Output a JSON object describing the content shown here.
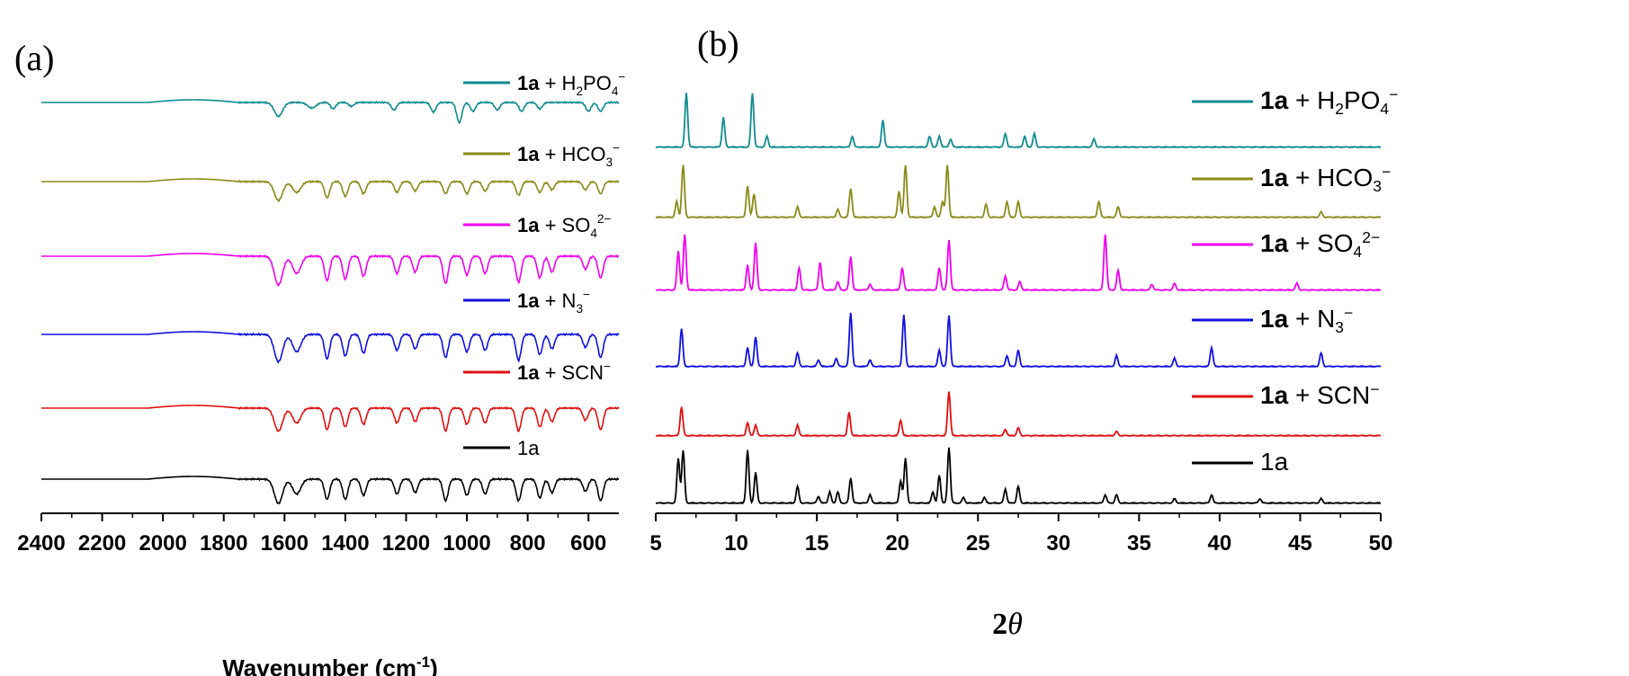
{
  "chart_data": [
    {
      "panel_label": "(a)",
      "type": "line",
      "xlabel": "Wavenumber (cm",
      "xlabel_sup": "-1",
      "xlabel_tail": ")",
      "xlim": [
        2400,
        500
      ],
      "xticks": [
        "2400",
        "2200",
        "2000",
        "1800",
        "1600",
        "1400",
        "1200",
        "1000",
        "800",
        "600"
      ],
      "xtick_values": [
        2400,
        2200,
        2000,
        1800,
        1600,
        1400,
        1200,
        1000,
        800,
        600
      ],
      "ylabel": "",
      "legend_placement": "right, one entry above each trace",
      "series": [
        {
          "name_bold": "1a",
          "name_parts": [
            [
              "+ H",
              ""
            ],
            [
              "2",
              "sub"
            ],
            [
              "PO",
              ""
            ],
            [
              "4",
              "sub"
            ],
            [
              "−",
              "sup"
            ]
          ],
          "color": "#0f8b8d",
          "peaks": [
            [
              1620,
              0.55
            ],
            [
              1510,
              0.22
            ],
            [
              1440,
              0.25
            ],
            [
              1380,
              0.15
            ],
            [
              1240,
              0.3
            ],
            [
              1110,
              0.38
            ],
            [
              1025,
              0.8
            ],
            [
              980,
              0.35
            ],
            [
              900,
              0.3
            ],
            [
              820,
              0.35
            ],
            [
              760,
              0.25
            ],
            [
              600,
              0.35
            ],
            [
              560,
              0.35
            ]
          ]
        },
        {
          "name_bold": "1a",
          "name_parts": [
            [
              "+ HCO",
              ""
            ],
            [
              "3",
              "sub"
            ],
            [
              "−",
              "sup"
            ]
          ],
          "color": "#8a8a1a",
          "peaks": [
            [
              1620,
              0.7
            ],
            [
              1560,
              0.4
            ],
            [
              1460,
              0.6
            ],
            [
              1400,
              0.55
            ],
            [
              1340,
              0.45
            ],
            [
              1230,
              0.4
            ],
            [
              1170,
              0.35
            ],
            [
              1070,
              0.45
            ],
            [
              1000,
              0.45
            ],
            [
              940,
              0.35
            ],
            [
              830,
              0.5
            ],
            [
              760,
              0.4
            ],
            [
              720,
              0.3
            ],
            [
              610,
              0.3
            ],
            [
              560,
              0.45
            ]
          ]
        },
        {
          "name_bold": "1a",
          "name_parts": [
            [
              "+ SO",
              ""
            ],
            [
              "4",
              "sub"
            ],
            [
              "2−",
              "sup"
            ]
          ],
          "color": "#f000f0",
          "peaks": [
            [
              1620,
              1.0
            ],
            [
              1560,
              0.6
            ],
            [
              1460,
              0.85
            ],
            [
              1400,
              0.8
            ],
            [
              1340,
              0.7
            ],
            [
              1230,
              0.6
            ],
            [
              1170,
              0.55
            ],
            [
              1070,
              0.95
            ],
            [
              1000,
              0.65
            ],
            [
              940,
              0.6
            ],
            [
              830,
              0.9
            ],
            [
              760,
              0.75
            ],
            [
              720,
              0.55
            ],
            [
              610,
              0.45
            ],
            [
              560,
              0.75
            ]
          ]
        },
        {
          "name_bold": "1a",
          "name_parts": [
            [
              "+ N",
              ""
            ],
            [
              "3",
              "sub"
            ],
            [
              "−",
              "sup"
            ]
          ],
          "color": "#1010e0",
          "peaks": [
            [
              2050,
              0.25
            ],
            [
              1620,
              0.95
            ],
            [
              1560,
              0.6
            ],
            [
              1460,
              0.85
            ],
            [
              1400,
              0.75
            ],
            [
              1340,
              0.65
            ],
            [
              1230,
              0.55
            ],
            [
              1170,
              0.5
            ],
            [
              1070,
              0.8
            ],
            [
              1000,
              0.6
            ],
            [
              940,
              0.55
            ],
            [
              830,
              0.9
            ],
            [
              760,
              0.7
            ],
            [
              720,
              0.5
            ],
            [
              610,
              0.45
            ],
            [
              560,
              0.8
            ]
          ]
        },
        {
          "name_bold": "1a",
          "name_parts": [
            [
              "+ SCN",
              ""
            ],
            [
              "−",
              "sup"
            ]
          ],
          "color": "#e01010",
          "peaks": [
            [
              2100,
              0.25
            ],
            [
              1620,
              0.85
            ],
            [
              1560,
              0.55
            ],
            [
              1460,
              0.8
            ],
            [
              1400,
              0.7
            ],
            [
              1340,
              0.6
            ],
            [
              1230,
              0.55
            ],
            [
              1170,
              0.5
            ],
            [
              1070,
              0.85
            ],
            [
              1000,
              0.6
            ],
            [
              940,
              0.55
            ],
            [
              830,
              0.85
            ],
            [
              760,
              0.7
            ],
            [
              720,
              0.5
            ],
            [
              610,
              0.45
            ],
            [
              560,
              0.8
            ]
          ]
        },
        {
          "name_bold": "",
          "name_parts": [
            [
              "1a",
              ""
            ]
          ],
          "color": "#000000",
          "peaks": [
            [
              1620,
              0.9
            ],
            [
              1560,
              0.55
            ],
            [
              1460,
              0.75
            ],
            [
              1400,
              0.75
            ],
            [
              1340,
              0.6
            ],
            [
              1230,
              0.55
            ],
            [
              1170,
              0.5
            ],
            [
              1070,
              0.8
            ],
            [
              1000,
              0.6
            ],
            [
              940,
              0.55
            ],
            [
              830,
              0.8
            ],
            [
              760,
              0.7
            ],
            [
              720,
              0.5
            ],
            [
              610,
              0.45
            ],
            [
              560,
              0.8
            ]
          ]
        }
      ]
    },
    {
      "panel_label": "(b)",
      "type": "line",
      "xlabel": "2",
      "xlabel_greek": "θ",
      "xlim": [
        5,
        50
      ],
      "xticks": [
        "5",
        "10",
        "15",
        "20",
        "25",
        "30",
        "35",
        "40",
        "45",
        "50"
      ],
      "xtick_values": [
        5,
        10,
        15,
        20,
        25,
        30,
        35,
        40,
        45,
        50
      ],
      "ylabel": "",
      "legend_placement": "right, one entry beside each trace",
      "series": [
        {
          "name_bold": "1a",
          "name_parts": [
            [
              "+ H",
              ""
            ],
            [
              "2",
              "sub"
            ],
            [
              "PO",
              ""
            ],
            [
              "4",
              "sub"
            ],
            [
              "−",
              "sup"
            ]
          ],
          "color": "#0f8b8d",
          "peaks": [
            [
              6.9,
              1.0
            ],
            [
              9.2,
              0.55
            ],
            [
              11.0,
              1.0
            ],
            [
              11.9,
              0.2
            ],
            [
              17.2,
              0.2
            ],
            [
              19.1,
              0.5
            ],
            [
              22.0,
              0.2
            ],
            [
              22.6,
              0.2
            ],
            [
              23.3,
              0.15
            ],
            [
              26.7,
              0.25
            ],
            [
              27.9,
              0.2
            ],
            [
              28.5,
              0.25
            ],
            [
              32.2,
              0.15
            ]
          ]
        },
        {
          "name_bold": "1a",
          "name_parts": [
            [
              "+ HCO",
              ""
            ],
            [
              "3",
              "sub"
            ],
            [
              "−",
              "sup"
            ]
          ],
          "color": "#8a8a1a",
          "peaks": [
            [
              6.3,
              0.3
            ],
            [
              6.7,
              1.0
            ],
            [
              10.7,
              0.6
            ],
            [
              11.1,
              0.45
            ],
            [
              13.8,
              0.2
            ],
            [
              16.3,
              0.15
            ],
            [
              17.1,
              0.55
            ],
            [
              20.1,
              0.5
            ],
            [
              20.5,
              1.0
            ],
            [
              22.3,
              0.2
            ],
            [
              22.8,
              0.3
            ],
            [
              23.1,
              1.0
            ],
            [
              25.5,
              0.25
            ],
            [
              26.8,
              0.3
            ],
            [
              27.5,
              0.3
            ],
            [
              32.5,
              0.3
            ],
            [
              33.7,
              0.2
            ],
            [
              46.3,
              0.1
            ]
          ]
        },
        {
          "name_bold": "1a",
          "name_parts": [
            [
              "+ SO",
              ""
            ],
            [
              "4",
              "sub"
            ],
            [
              "2−",
              "sup"
            ]
          ],
          "color": "#f000f0",
          "peaks": [
            [
              6.4,
              0.7
            ],
            [
              6.8,
              1.0
            ],
            [
              10.7,
              0.45
            ],
            [
              11.2,
              0.85
            ],
            [
              13.9,
              0.4
            ],
            [
              15.2,
              0.5
            ],
            [
              16.3,
              0.15
            ],
            [
              17.1,
              0.6
            ],
            [
              18.3,
              0.1
            ],
            [
              20.3,
              0.4
            ],
            [
              22.6,
              0.4
            ],
            [
              23.2,
              0.9
            ],
            [
              26.7,
              0.25
            ],
            [
              27.6,
              0.15
            ],
            [
              32.9,
              1.0
            ],
            [
              33.7,
              0.35
            ],
            [
              35.8,
              0.1
            ],
            [
              37.2,
              0.12
            ],
            [
              44.8,
              0.12
            ]
          ]
        },
        {
          "name_bold": "1a",
          "name_parts": [
            [
              "+ N",
              ""
            ],
            [
              "3",
              "sub"
            ],
            [
              "−",
              "sup"
            ]
          ],
          "color": "#1010e0",
          "peaks": [
            [
              6.6,
              0.7
            ],
            [
              10.7,
              0.35
            ],
            [
              11.2,
              0.55
            ],
            [
              13.8,
              0.25
            ],
            [
              15.1,
              0.12
            ],
            [
              16.2,
              0.15
            ],
            [
              17.1,
              1.0
            ],
            [
              18.3,
              0.12
            ],
            [
              20.4,
              0.95
            ],
            [
              22.6,
              0.3
            ],
            [
              23.2,
              0.95
            ],
            [
              26.8,
              0.2
            ],
            [
              27.5,
              0.3
            ],
            [
              33.6,
              0.2
            ],
            [
              37.2,
              0.15
            ],
            [
              39.5,
              0.35
            ],
            [
              46.3,
              0.25
            ]
          ]
        },
        {
          "name_bold": "1a",
          "name_parts": [
            [
              "+ SCN",
              ""
            ],
            [
              "−",
              "sup"
            ]
          ],
          "color": "#e01010",
          "peaks": [
            [
              6.6,
              0.55
            ],
            [
              10.7,
              0.25
            ],
            [
              11.2,
              0.2
            ],
            [
              13.8,
              0.2
            ],
            [
              17.0,
              0.45
            ],
            [
              20.2,
              0.3
            ],
            [
              23.2,
              0.85
            ],
            [
              26.7,
              0.12
            ],
            [
              27.5,
              0.15
            ],
            [
              33.6,
              0.08
            ]
          ]
        },
        {
          "name_bold": "",
          "name_parts": [
            [
              "1a",
              ""
            ]
          ],
          "color": "#000000",
          "peaks": [
            [
              6.4,
              0.8
            ],
            [
              6.7,
              0.95
            ],
            [
              10.7,
              0.95
            ],
            [
              11.2,
              0.55
            ],
            [
              13.8,
              0.3
            ],
            [
              15.1,
              0.12
            ],
            [
              15.8,
              0.2
            ],
            [
              16.3,
              0.2
            ],
            [
              17.1,
              0.45
            ],
            [
              18.3,
              0.15
            ],
            [
              20.2,
              0.4
            ],
            [
              20.5,
              0.8
            ],
            [
              22.2,
              0.2
            ],
            [
              22.6,
              0.5
            ],
            [
              23.2,
              1.0
            ],
            [
              24.1,
              0.1
            ],
            [
              25.4,
              0.1
            ],
            [
              26.7,
              0.25
            ],
            [
              27.5,
              0.3
            ],
            [
              32.9,
              0.15
            ],
            [
              33.6,
              0.15
            ],
            [
              37.2,
              0.08
            ],
            [
              39.5,
              0.15
            ],
            [
              42.5,
              0.08
            ],
            [
              46.3,
              0.08
            ]
          ]
        }
      ]
    }
  ]
}
